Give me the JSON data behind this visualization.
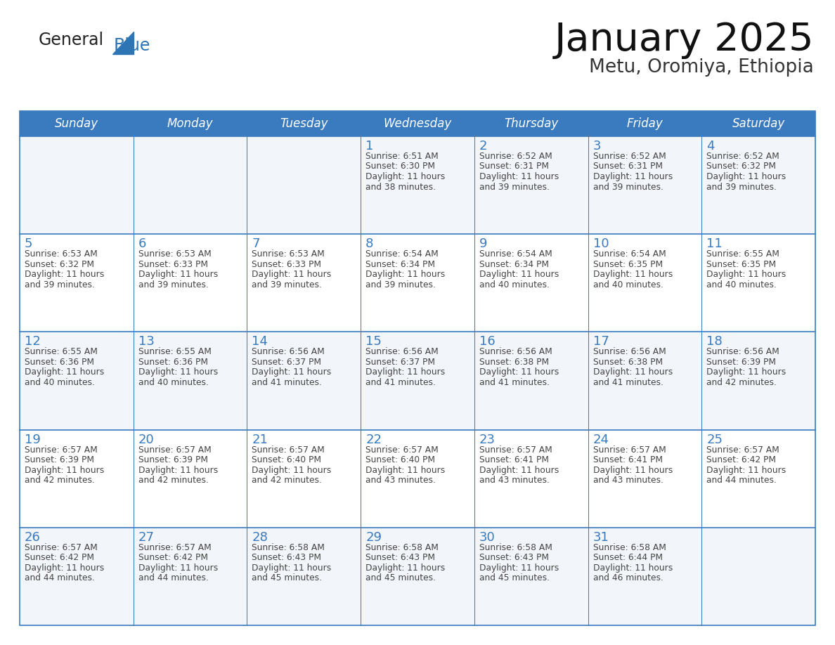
{
  "title": "January 2025",
  "subtitle": "Metu, Oromiya, Ethiopia",
  "days_of_week": [
    "Sunday",
    "Monday",
    "Tuesday",
    "Wednesday",
    "Thursday",
    "Friday",
    "Saturday"
  ],
  "header_bg": "#3a7abf",
  "header_text": "#ffffff",
  "row_bg_odd": "#f2f5f9",
  "row_bg_even": "#ffffff",
  "border_color": "#3a7abf",
  "text_color": "#444444",
  "day_num_color": "#3a7abf",
  "logo_general_color": "#222222",
  "logo_blue_color": "#2e75b6",
  "calendar_data": [
    [
      null,
      null,
      null,
      {
        "day": 1,
        "sunrise": "6:51 AM",
        "sunset": "6:30 PM",
        "daylight": "11 hours and 38 minutes."
      },
      {
        "day": 2,
        "sunrise": "6:52 AM",
        "sunset": "6:31 PM",
        "daylight": "11 hours and 39 minutes."
      },
      {
        "day": 3,
        "sunrise": "6:52 AM",
        "sunset": "6:31 PM",
        "daylight": "11 hours and 39 minutes."
      },
      {
        "day": 4,
        "sunrise": "6:52 AM",
        "sunset": "6:32 PM",
        "daylight": "11 hours and 39 minutes."
      }
    ],
    [
      {
        "day": 5,
        "sunrise": "6:53 AM",
        "sunset": "6:32 PM",
        "daylight": "11 hours and 39 minutes."
      },
      {
        "day": 6,
        "sunrise": "6:53 AM",
        "sunset": "6:33 PM",
        "daylight": "11 hours and 39 minutes."
      },
      {
        "day": 7,
        "sunrise": "6:53 AM",
        "sunset": "6:33 PM",
        "daylight": "11 hours and 39 minutes."
      },
      {
        "day": 8,
        "sunrise": "6:54 AM",
        "sunset": "6:34 PM",
        "daylight": "11 hours and 39 minutes."
      },
      {
        "day": 9,
        "sunrise": "6:54 AM",
        "sunset": "6:34 PM",
        "daylight": "11 hours and 40 minutes."
      },
      {
        "day": 10,
        "sunrise": "6:54 AM",
        "sunset": "6:35 PM",
        "daylight": "11 hours and 40 minutes."
      },
      {
        "day": 11,
        "sunrise": "6:55 AM",
        "sunset": "6:35 PM",
        "daylight": "11 hours and 40 minutes."
      }
    ],
    [
      {
        "day": 12,
        "sunrise": "6:55 AM",
        "sunset": "6:36 PM",
        "daylight": "11 hours and 40 minutes."
      },
      {
        "day": 13,
        "sunrise": "6:55 AM",
        "sunset": "6:36 PM",
        "daylight": "11 hours and 40 minutes."
      },
      {
        "day": 14,
        "sunrise": "6:56 AM",
        "sunset": "6:37 PM",
        "daylight": "11 hours and 41 minutes."
      },
      {
        "day": 15,
        "sunrise": "6:56 AM",
        "sunset": "6:37 PM",
        "daylight": "11 hours and 41 minutes."
      },
      {
        "day": 16,
        "sunrise": "6:56 AM",
        "sunset": "6:38 PM",
        "daylight": "11 hours and 41 minutes."
      },
      {
        "day": 17,
        "sunrise": "6:56 AM",
        "sunset": "6:38 PM",
        "daylight": "11 hours and 41 minutes."
      },
      {
        "day": 18,
        "sunrise": "6:56 AM",
        "sunset": "6:39 PM",
        "daylight": "11 hours and 42 minutes."
      }
    ],
    [
      {
        "day": 19,
        "sunrise": "6:57 AM",
        "sunset": "6:39 PM",
        "daylight": "11 hours and 42 minutes."
      },
      {
        "day": 20,
        "sunrise": "6:57 AM",
        "sunset": "6:39 PM",
        "daylight": "11 hours and 42 minutes."
      },
      {
        "day": 21,
        "sunrise": "6:57 AM",
        "sunset": "6:40 PM",
        "daylight": "11 hours and 42 minutes."
      },
      {
        "day": 22,
        "sunrise": "6:57 AM",
        "sunset": "6:40 PM",
        "daylight": "11 hours and 43 minutes."
      },
      {
        "day": 23,
        "sunrise": "6:57 AM",
        "sunset": "6:41 PM",
        "daylight": "11 hours and 43 minutes."
      },
      {
        "day": 24,
        "sunrise": "6:57 AM",
        "sunset": "6:41 PM",
        "daylight": "11 hours and 43 minutes."
      },
      {
        "day": 25,
        "sunrise": "6:57 AM",
        "sunset": "6:42 PM",
        "daylight": "11 hours and 44 minutes."
      }
    ],
    [
      {
        "day": 26,
        "sunrise": "6:57 AM",
        "sunset": "6:42 PM",
        "daylight": "11 hours and 44 minutes."
      },
      {
        "day": 27,
        "sunrise": "6:57 AM",
        "sunset": "6:42 PM",
        "daylight": "11 hours and 44 minutes."
      },
      {
        "day": 28,
        "sunrise": "6:58 AM",
        "sunset": "6:43 PM",
        "daylight": "11 hours and 45 minutes."
      },
      {
        "day": 29,
        "sunrise": "6:58 AM",
        "sunset": "6:43 PM",
        "daylight": "11 hours and 45 minutes."
      },
      {
        "day": 30,
        "sunrise": "6:58 AM",
        "sunset": "6:43 PM",
        "daylight": "11 hours and 45 minutes."
      },
      {
        "day": 31,
        "sunrise": "6:58 AM",
        "sunset": "6:44 PM",
        "daylight": "11 hours and 46 minutes."
      },
      null
    ]
  ]
}
